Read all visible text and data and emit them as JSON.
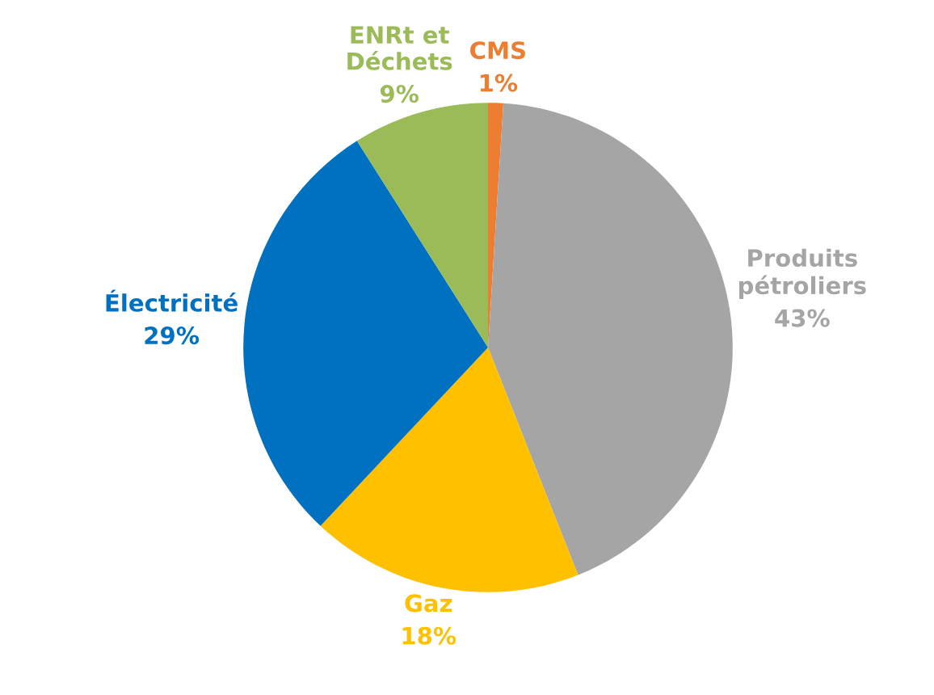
{
  "chart_data": {
    "type": "pie",
    "categories": [
      "CMS",
      "Produits\npétroliers",
      "Gaz",
      "Électricité",
      "ENRt et\nDéchets"
    ],
    "values": [
      1,
      43,
      18,
      29,
      9
    ],
    "value_labels": [
      "1%",
      "43%",
      "18%",
      "29%",
      "9%"
    ],
    "colors": [
      "#ed7d31",
      "#a5a5a5",
      "#ffc000",
      "#0070c0",
      "#9bbb59"
    ]
  }
}
